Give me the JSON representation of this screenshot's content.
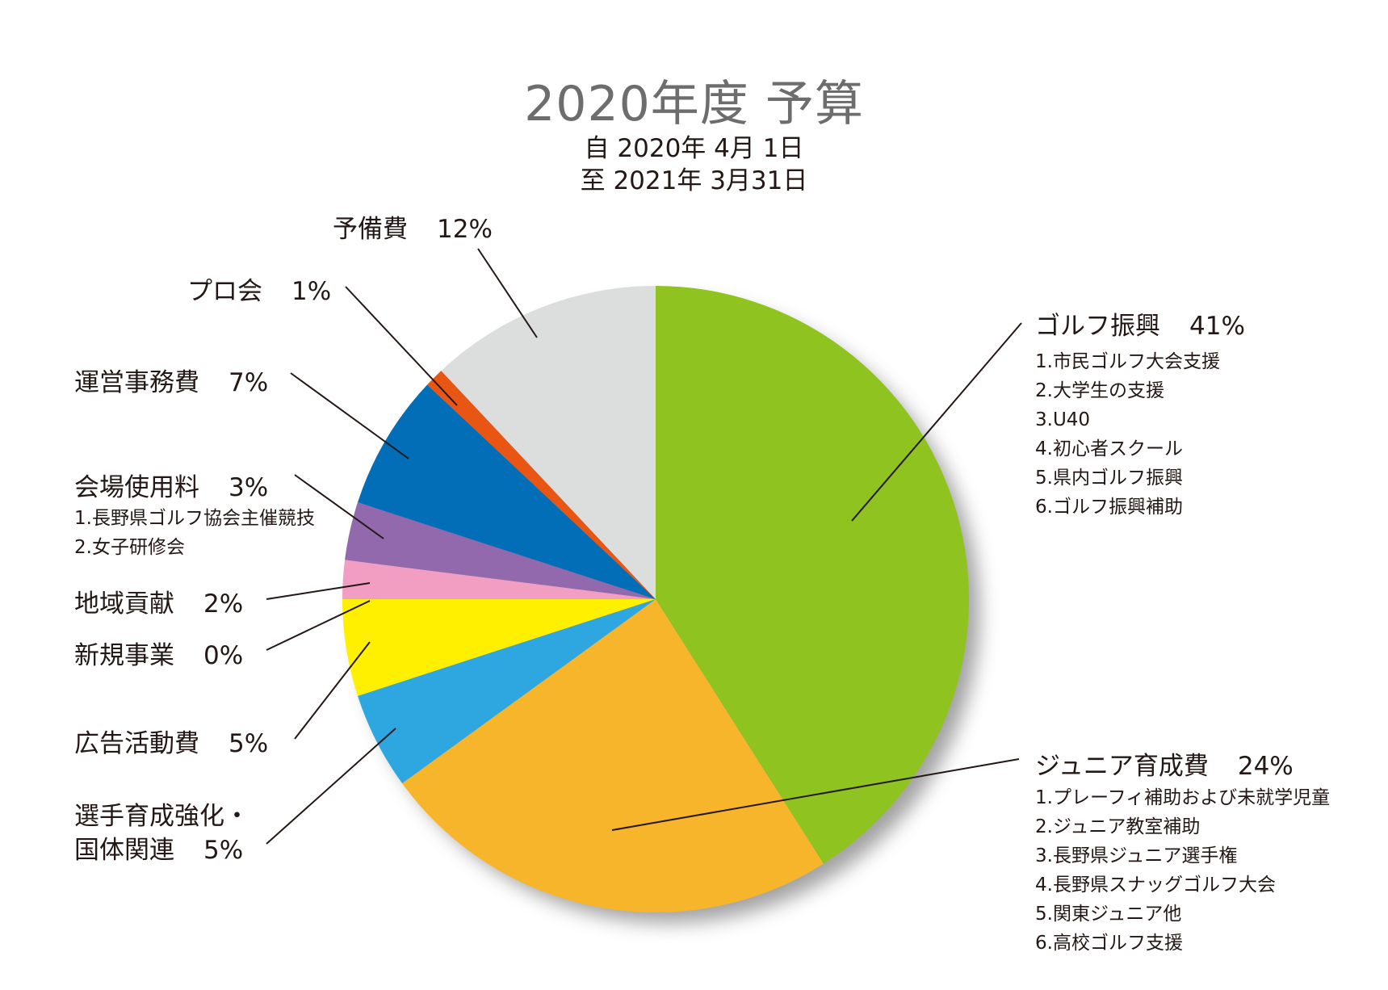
{
  "title": "2020年度 予算",
  "period_from": "自 2020年 4月  1日",
  "period_to": "至 2021年 3月31日",
  "chart_data": {
    "type": "pie",
    "title": "2020年度 予算",
    "slices": [
      {
        "label": "ゴルフ振興",
        "pct_label": "41%",
        "value": 41,
        "color": "#8fc31f",
        "items": [
          "1.市民ゴルフ大会支援",
          "2.大学生の支援",
          "3.U40",
          "4.初心者スクール",
          "5.県内ゴルフ振興",
          "6.ゴルフ振興補助"
        ]
      },
      {
        "label": "ジュニア育成費",
        "pct_label": "24%",
        "value": 24,
        "color": "#f7b52c",
        "items": [
          "1.プレーフィ補助および未就学児童",
          "2.ジュニア教室補助",
          "3.長野県ジュニア選手権",
          "4.長野県スナッグゴルフ大会",
          "5.関東ジュニア他",
          "6.高校ゴルフ支援"
        ]
      },
      {
        "label": "選手育成強化・",
        "label2": "国体関連",
        "pct_label": "5%",
        "value": 5,
        "color": "#2ea7e0",
        "items": []
      },
      {
        "label": "広告活動費",
        "pct_label": "5%",
        "value": 5,
        "color": "#fff000",
        "items": []
      },
      {
        "label": "新規事業",
        "pct_label": "0%",
        "value": 0,
        "color": "#fff000",
        "items": []
      },
      {
        "label": "地域貢献",
        "pct_label": "2%",
        "value": 2,
        "color": "#f19ec2",
        "items": []
      },
      {
        "label": "会場使用料",
        "pct_label": "3%",
        "value": 3,
        "color": "#9169ac",
        "items": [
          "1.長野県ゴルフ協会主催競技",
          "2.女子研修会"
        ]
      },
      {
        "label": "運営事務費",
        "pct_label": "7%",
        "value": 7,
        "color": "#036eb8",
        "items": []
      },
      {
        "label": "プロ会",
        "pct_label": "1%",
        "value": 1,
        "color": "#e95513",
        "items": []
      },
      {
        "label": "予備費",
        "pct_label": "12%",
        "value": 12,
        "color": "#dcdddd",
        "items": []
      }
    ]
  }
}
